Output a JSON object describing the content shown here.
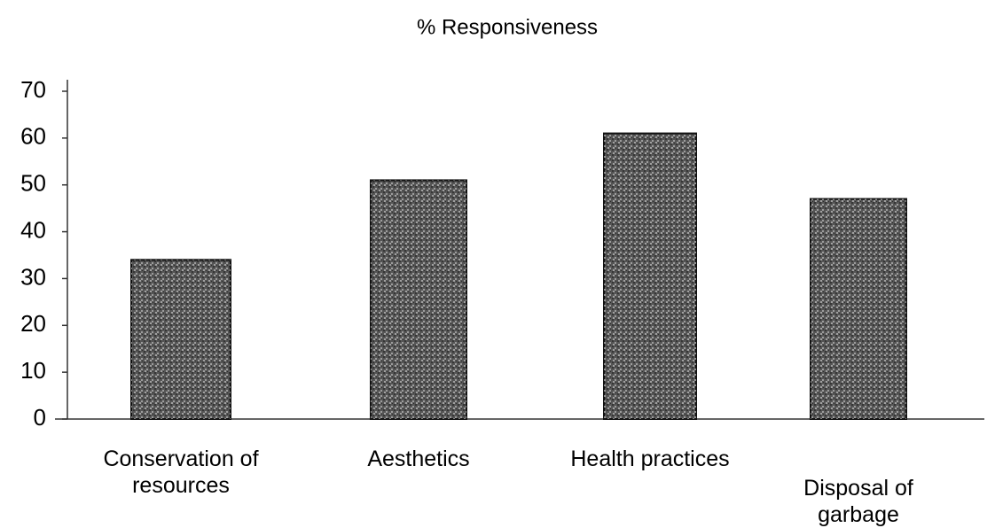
{
  "chart_data": {
    "type": "bar",
    "title": "% Responsiveness",
    "categories": [
      "Conservation of resources",
      "Aesthetics",
      "Health practices",
      "Disposal of garbage"
    ],
    "values": [
      34,
      51,
      61,
      47
    ],
    "color": "#555555",
    "ylim": [
      0,
      70
    ],
    "yticks": [
      0,
      10,
      20,
      30,
      40,
      50,
      60,
      70
    ],
    "grid": false
  }
}
